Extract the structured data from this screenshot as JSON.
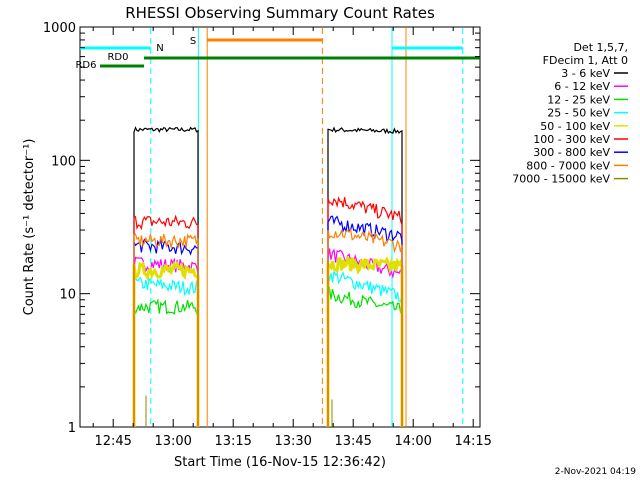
{
  "chart_data": {
    "type": "line",
    "title": "RHESSI Observing Summary Count Rates",
    "xlabel": "Start Time (16-Nov-15 12:36:42)",
    "ylabel": "Count Rate (s⁻¹ detector⁻¹)",
    "yscale": "log",
    "ylim": [
      1,
      1000
    ],
    "xlim_minutes": [
      0,
      100
    ],
    "x_ticks": [
      {
        "t": 8.3,
        "label": "12:45"
      },
      {
        "t": 23.3,
        "label": "13:00"
      },
      {
        "t": 38.3,
        "label": "13:15"
      },
      {
        "t": 53.3,
        "label": "13:30"
      },
      {
        "t": 68.3,
        "label": "13:45"
      },
      {
        "t": 83.3,
        "label": "14:00"
      },
      {
        "t": 98.3,
        "label": "14:15"
      }
    ],
    "y_ticks": [
      {
        "v": 1,
        "label": "1"
      },
      {
        "v": 10,
        "label": "10"
      },
      {
        "v": 100,
        "label": "100"
      },
      {
        "v": 1000,
        "label": "1000"
      }
    ],
    "legend": {
      "header": [
        "Det 1,5,7,",
        "FDecim 1, Att 0"
      ],
      "position": "right"
    },
    "series": [
      {
        "name": "3 - 6 keV",
        "color": "#000000",
        "seg1": [
          [
            13.5,
            170
          ],
          [
            29.5,
            170
          ]
        ],
        "seg2": [
          [
            62,
            170
          ],
          [
            80.5,
            165
          ]
        ]
      },
      {
        "name": "6 - 12 keV",
        "color": "#ff00ff",
        "seg1": [
          [
            13.5,
            17
          ],
          [
            29.5,
            16
          ]
        ],
        "seg2": [
          [
            62,
            20
          ],
          [
            80.5,
            14
          ]
        ]
      },
      {
        "name": "12 - 25 keV",
        "color": "#00e000",
        "seg1": [
          [
            13.5,
            8
          ],
          [
            29.5,
            8
          ]
        ],
        "seg2": [
          [
            62,
            10
          ],
          [
            80.5,
            7.5
          ]
        ]
      },
      {
        "name": "25 - 50 keV",
        "color": "#00ffff",
        "seg1": [
          [
            13.5,
            12
          ],
          [
            29.5,
            11
          ]
        ],
        "seg2": [
          [
            62,
            14
          ],
          [
            80.5,
            9.5
          ]
        ]
      },
      {
        "name": "50 - 100 keV",
        "color": "#e0e000",
        "seg1": [
          [
            13.5,
            15
          ],
          [
            29.5,
            15
          ]
        ],
        "seg2": [
          [
            62,
            17
          ],
          [
            80.5,
            16
          ]
        ]
      },
      {
        "name": "100 - 300 keV",
        "color": "#ff0000",
        "seg1": [
          [
            13.5,
            35
          ],
          [
            29.5,
            34
          ]
        ],
        "seg2": [
          [
            62,
            53
          ],
          [
            80.5,
            37
          ]
        ]
      },
      {
        "name": "300 - 800 keV",
        "color": "#0000ff",
        "seg1": [
          [
            13.5,
            23
          ],
          [
            29.5,
            22
          ]
        ],
        "seg2": [
          [
            62,
            35
          ],
          [
            80.5,
            27
          ]
        ]
      },
      {
        "name": "800 - 7000 keV",
        "color": "#ff8000",
        "seg1": [
          [
            13.5,
            25
          ],
          [
            29.5,
            25
          ]
        ],
        "seg2": [
          [
            62,
            30
          ],
          [
            80.5,
            23
          ]
        ]
      },
      {
        "name": "7000 - 15000 keV",
        "color": "#8b8b00",
        "seg1": [
          [
            16.5,
            1.5
          ],
          [
            16.5,
            1.5
          ]
        ],
        "seg2": [
          [
            63,
            1.4
          ],
          [
            63,
            1.4
          ]
        ]
      }
    ],
    "annotations": {
      "bars": [
        {
          "label": "N",
          "color": "#00ffff",
          "t_start": 0,
          "t_end": 17.7,
          "t_start2": 78,
          "t_end2": 95.7
        },
        {
          "label": "S",
          "color": "#ff8000",
          "t_start": 31.8,
          "t_end": 60.6
        },
        {
          "label": "RD0",
          "color": "#008000",
          "t_start": 16,
          "t_end": 100
        },
        {
          "label": "RD6",
          "color": "#008000",
          "t_start": 5,
          "t_end": 16
        }
      ],
      "vlines": [
        {
          "t": 17.7,
          "color": "#00ffff",
          "style": "dashed"
        },
        {
          "t": 29.6,
          "color": "#00ffff",
          "style": "solid"
        },
        {
          "t": 31.8,
          "color": "#ff8000",
          "style": "solid"
        },
        {
          "t": 60.6,
          "color": "#ff8000",
          "style": "dashed"
        },
        {
          "t": 78,
          "color": "#00ffff",
          "style": "solid"
        },
        {
          "t": 81.5,
          "color": "#ff8000",
          "style": "solid"
        },
        {
          "t": 95.7,
          "color": "#00ffff",
          "style": "dashed"
        }
      ]
    }
  },
  "footer": {
    "timestamp": "2-Nov-2021 04:19"
  }
}
